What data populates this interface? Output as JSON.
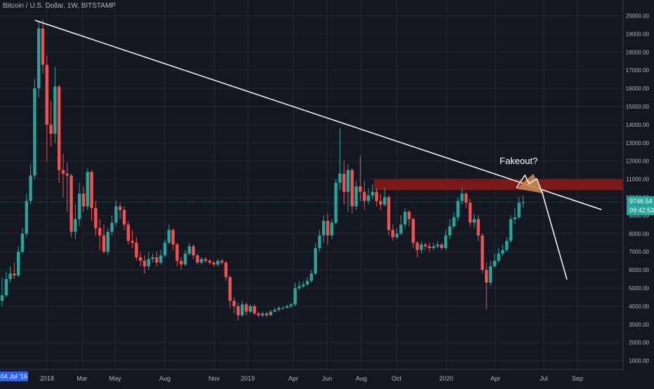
{
  "header": {
    "title": "Bitcoin / U.S. Dollar, 1W, BITSTAMP"
  },
  "badges": {
    "price": "9746.54",
    "countdown": "09:42:53",
    "start_date": "04 Jul '16"
  },
  "annotation": {
    "text": "Fakeout?"
  },
  "colors": {
    "background": "#131722",
    "grid": "#242832",
    "up": "#26a69a",
    "down": "#ef5350",
    "zone": "#8b1a1a",
    "fake": "#c8874a",
    "line": "#ffffff"
  },
  "chart_data": {
    "type": "candlestick",
    "title": "Bitcoin / U.S. Dollar, 1W, BITSTAMP",
    "x_ticks": [
      "2018",
      "Mar",
      "May",
      "Aug",
      "Nov",
      "2019",
      "Apr",
      "Jun",
      "Aug",
      "Oct",
      "2020",
      "Apr",
      "Jul",
      "Sep"
    ],
    "y_ticks": [
      "1000.00",
      "2000.00",
      "3000.00",
      "4000.00",
      "5000.00",
      "6000.00",
      "7000.00",
      "8000.00",
      "9000.00",
      "10000.00",
      "11000.00",
      "12000.00",
      "13000.00",
      "14000.00",
      "15000.00",
      "16000.00",
      "17000.00",
      "18000.00",
      "19000.00",
      "20000.00"
    ],
    "ylim": [
      0,
      20700
    ],
    "last_price": 9746.54,
    "resistance_zone": [
      10400,
      11000
    ],
    "candles": [
      [
        4300,
        4600,
        4000,
        5600
      ],
      [
        4600,
        5500,
        4500,
        5900
      ],
      [
        5500,
        5800,
        5300,
        6200
      ],
      [
        5800,
        5700,
        5500,
        6400
      ],
      [
        5700,
        7000,
        5600,
        7300
      ],
      [
        7000,
        8000,
        6900,
        8300
      ],
      [
        8000,
        9800,
        7800,
        10200
      ],
      [
        9800,
        11200,
        9600,
        11800
      ],
      [
        11200,
        16000,
        11000,
        16500
      ],
      [
        16000,
        19300,
        15500,
        19700
      ],
      [
        19300,
        17300,
        16800,
        19800
      ],
      [
        17300,
        14000,
        12000,
        17800
      ],
      [
        14000,
        13500,
        12800,
        15300
      ],
      [
        13500,
        16100,
        13000,
        17200
      ],
      [
        16100,
        11500,
        10800,
        16200
      ],
      [
        11500,
        11300,
        10000,
        12400
      ],
      [
        11300,
        11200,
        9200,
        11900
      ],
      [
        11200,
        8100,
        7800,
        11300
      ],
      [
        8100,
        8800,
        7700,
        9600
      ],
      [
        8800,
        10200,
        8400,
        10800
      ],
      [
        10200,
        9500,
        9200,
        10600
      ],
      [
        9500,
        11400,
        9300,
        11600
      ],
      [
        11400,
        9400,
        8700,
        11500
      ],
      [
        9400,
        8300,
        7900,
        9800
      ],
      [
        8300,
        7900,
        7100,
        8800
      ],
      [
        7900,
        7000,
        6900,
        8500
      ],
      [
        7000,
        8100,
        6800,
        8300
      ],
      [
        8100,
        8600,
        7900,
        9000
      ],
      [
        8600,
        9500,
        8400,
        9800
      ],
      [
        9500,
        9300,
        8800,
        9700
      ],
      [
        9300,
        8500,
        8200,
        9500
      ],
      [
        8500,
        7600,
        7400,
        8700
      ],
      [
        7600,
        7500,
        7200,
        8200
      ],
      [
        7500,
        6700,
        6500,
        7800
      ],
      [
        6700,
        6500,
        6200,
        7000
      ],
      [
        6500,
        6200,
        5800,
        6800
      ],
      [
        6200,
        6600,
        6000,
        7000
      ],
      [
        6600,
        6700,
        6400,
        6900
      ],
      [
        6700,
        6400,
        6200,
        7000
      ],
      [
        6400,
        6800,
        6300,
        7100
      ],
      [
        6800,
        7500,
        6700,
        7700
      ],
      [
        7500,
        8200,
        7400,
        8500
      ],
      [
        8200,
        7400,
        7100,
        8300
      ],
      [
        7400,
        6500,
        6200,
        7500
      ],
      [
        6500,
        6300,
        6000,
        6700
      ],
      [
        6300,
        6900,
        6200,
        7100
      ],
      [
        6900,
        7300,
        6800,
        7500
      ],
      [
        7300,
        6800,
        6600,
        7400
      ],
      [
        6800,
        6400,
        6300,
        6900
      ],
      [
        6400,
        6600,
        6300,
        6700
      ],
      [
        6600,
        6500,
        6400,
        6700
      ],
      [
        6500,
        6400,
        6300,
        6600
      ],
      [
        6400,
        6300,
        6200,
        6500
      ],
      [
        6300,
        6500,
        6200,
        6600
      ],
      [
        6500,
        6400,
        6300,
        6600
      ],
      [
        6400,
        5600,
        5400,
        6500
      ],
      [
        5600,
        4300,
        3900,
        5700
      ],
      [
        4300,
        4000,
        3600,
        4500
      ],
      [
        4000,
        3500,
        3200,
        4200
      ],
      [
        3500,
        4100,
        3400,
        4300
      ],
      [
        4100,
        3700,
        3500,
        4200
      ],
      [
        3700,
        4000,
        3600,
        4100
      ],
      [
        4000,
        3600,
        3500,
        4100
      ],
      [
        3600,
        3500,
        3400,
        3700
      ],
      [
        3500,
        3600,
        3400,
        3700
      ],
      [
        3600,
        3500,
        3400,
        3700
      ],
      [
        3500,
        3700,
        3500,
        3800
      ],
      [
        3700,
        3800,
        3700,
        3900
      ],
      [
        3800,
        3900,
        3700,
        4000
      ],
      [
        3900,
        3900,
        3800,
        4000
      ],
      [
        3900,
        4000,
        3900,
        4100
      ],
      [
        4000,
        4100,
        3900,
        4200
      ],
      [
        4100,
        5000,
        4000,
        5300
      ],
      [
        5000,
        5100,
        4900,
        5400
      ],
      [
        5100,
        5200,
        5000,
        5400
      ],
      [
        5200,
        5400,
        5100,
        5600
      ],
      [
        5400,
        5800,
        5300,
        6000
      ],
      [
        5800,
        7200,
        5700,
        7500
      ],
      [
        7200,
        7900,
        7000,
        8200
      ],
      [
        7900,
        8700,
        7500,
        9000
      ],
      [
        8700,
        7900,
        7400,
        9100
      ],
      [
        7900,
        8600,
        7700,
        8800
      ],
      [
        8600,
        10800,
        8500,
        11000
      ],
      [
        10800,
        11300,
        10400,
        13800
      ],
      [
        11300,
        10300,
        9600,
        12000
      ],
      [
        10300,
        11500,
        9200,
        11800
      ],
      [
        11500,
        9500,
        9100,
        11600
      ],
      [
        9500,
        10600,
        9300,
        10900
      ],
      [
        10600,
        10300,
        9800,
        12300
      ],
      [
        10300,
        9800,
        9300,
        10900
      ],
      [
        9800,
        10100,
        9600,
        10500
      ],
      [
        10100,
        10300,
        9900,
        10700
      ],
      [
        10300,
        9800,
        9500,
        10500
      ],
      [
        9800,
        9600,
        9300,
        10200
      ],
      [
        9600,
        10000,
        9500,
        10500
      ],
      [
        10000,
        8200,
        7900,
        10100
      ],
      [
        8200,
        7800,
        7600,
        8500
      ],
      [
        7800,
        8000,
        7700,
        8300
      ],
      [
        8000,
        8500,
        7900,
        9000
      ],
      [
        8500,
        9200,
        8300,
        9400
      ],
      [
        9200,
        8800,
        8400,
        9300
      ],
      [
        8800,
        7500,
        7200,
        8900
      ],
      [
        7500,
        7100,
        6700,
        7600
      ],
      [
        7100,
        7400,
        6900,
        7600
      ],
      [
        7400,
        7300,
        7100,
        7500
      ],
      [
        7300,
        7200,
        7000,
        7500
      ],
      [
        7200,
        7300,
        7100,
        7500
      ],
      [
        7300,
        7400,
        7200,
        7600
      ],
      [
        7400,
        7200,
        7100,
        7500
      ],
      [
        7200,
        7900,
        7100,
        8200
      ],
      [
        7900,
        8400,
        7700,
        8800
      ],
      [
        8400,
        8900,
        8300,
        9200
      ],
      [
        8900,
        9800,
        8700,
        10000
      ],
      [
        9800,
        10200,
        9600,
        10500
      ],
      [
        10200,
        9700,
        9400,
        10300
      ],
      [
        9700,
        8600,
        8400,
        9900
      ],
      [
        8600,
        8800,
        8300,
        9100
      ],
      [
        8800,
        7900,
        7600,
        9000
      ],
      [
        7900,
        6000,
        5800,
        8000
      ],
      [
        6000,
        5300,
        3800,
        6400
      ],
      [
        5300,
        6200,
        5100,
        6500
      ],
      [
        6200,
        6500,
        6100,
        6900
      ],
      [
        6500,
        6900,
        6400,
        7200
      ],
      [
        6900,
        7100,
        6800,
        7400
      ],
      [
        7100,
        7600,
        7000,
        7800
      ],
      [
        7600,
        8800,
        7500,
        9000
      ],
      [
        8800,
        8900,
        8500,
        9400
      ],
      [
        8900,
        9700,
        8800,
        10000
      ],
      [
        9700,
        9746.54,
        9400,
        10100
      ]
    ]
  }
}
